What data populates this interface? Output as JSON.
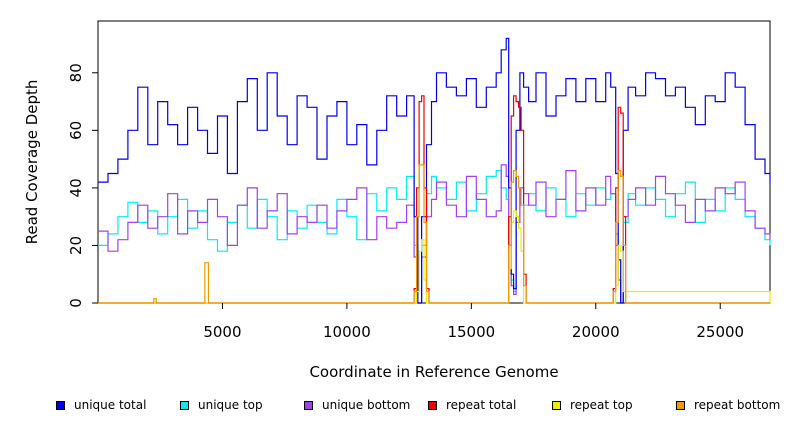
{
  "chart_data": {
    "type": "line",
    "title": "",
    "xlabel": "Coordinate in Reference Genome",
    "ylabel": "Read Coverage Depth",
    "xlim": [
      0,
      27000
    ],
    "ylim": [
      0,
      98
    ],
    "xticks": [
      5000,
      10000,
      15000,
      20000,
      25000
    ],
    "yticks": [
      0,
      20,
      40,
      60,
      80
    ],
    "grid": false,
    "legend_position": "bottom",
    "legend": [
      {
        "name": "unique total",
        "color": "#0000ee"
      },
      {
        "name": "unique top",
        "color": "#00eeee"
      },
      {
        "name": "unique bottom",
        "color": "#a040ee"
      },
      {
        "name": "repeat total",
        "color": "#ee0000"
      },
      {
        "name": "repeat top",
        "color": "#eeee00"
      },
      {
        "name": "repeat bottom",
        "color": "#ee9a00"
      }
    ],
    "series": [
      {
        "name": "unique total",
        "color": "#0000ee",
        "x": [
          0,
          400,
          800,
          1200,
          1600,
          2000,
          2400,
          2800,
          3200,
          3600,
          4000,
          4400,
          4800,
          5200,
          5600,
          6000,
          6400,
          6800,
          7200,
          7600,
          8000,
          8400,
          8800,
          9200,
          9600,
          10000,
          10400,
          10800,
          11200,
          11600,
          12000,
          12400,
          12700,
          12850,
          13000,
          13200,
          13400,
          13600,
          14000,
          14400,
          14800,
          15200,
          15600,
          16000,
          16200,
          16400,
          16500,
          16600,
          16700,
          16800,
          16950,
          17100,
          17300,
          17600,
          18000,
          18400,
          18800,
          19200,
          19600,
          20000,
          20400,
          20600,
          20800,
          20900,
          21000,
          21100,
          21300,
          21600,
          22000,
          22400,
          22800,
          23200,
          23600,
          24000,
          24400,
          24800,
          25200,
          25600,
          26000,
          26400,
          26800,
          27000
        ],
        "values": [
          42,
          45,
          50,
          60,
          75,
          55,
          70,
          62,
          55,
          68,
          60,
          52,
          65,
          45,
          70,
          78,
          60,
          80,
          65,
          55,
          72,
          68,
          50,
          65,
          70,
          55,
          62,
          48,
          60,
          72,
          65,
          72,
          30,
          0,
          30,
          55,
          70,
          80,
          75,
          72,
          78,
          68,
          75,
          80,
          88,
          92,
          40,
          10,
          5,
          60,
          80,
          75,
          70,
          80,
          65,
          72,
          78,
          70,
          78,
          70,
          80,
          75,
          45,
          15,
          0,
          60,
          75,
          72,
          80,
          78,
          72,
          75,
          68,
          62,
          72,
          70,
          80,
          75,
          62,
          50,
          45,
          42
        ]
      },
      {
        "name": "unique top",
        "color": "#00eeee",
        "x": [
          0,
          400,
          800,
          1200,
          1600,
          2000,
          2400,
          2800,
          3200,
          3600,
          4000,
          4400,
          4800,
          5200,
          5600,
          6000,
          6400,
          6800,
          7200,
          7600,
          8000,
          8400,
          8800,
          9200,
          9600,
          10000,
          10400,
          10800,
          11200,
          11600,
          12000,
          12400,
          12700,
          12850,
          13000,
          13200,
          13400,
          13600,
          14000,
          14400,
          14800,
          15200,
          15600,
          16000,
          16200,
          16400,
          16500,
          16600,
          16700,
          16800,
          16950,
          17100,
          17300,
          17600,
          18000,
          18400,
          18800,
          19200,
          19600,
          20000,
          20400,
          20600,
          20800,
          20900,
          21000,
          21100,
          21300,
          21600,
          22000,
          22400,
          22800,
          23200,
          23600,
          24000,
          24400,
          24800,
          25200,
          25600,
          26000,
          26400,
          26800,
          27000
        ],
        "values": [
          20,
          24,
          30,
          35,
          28,
          32,
          24,
          30,
          36,
          26,
          32,
          22,
          18,
          28,
          34,
          26,
          36,
          30,
          22,
          32,
          26,
          34,
          28,
          24,
          36,
          30,
          22,
          38,
          32,
          40,
          36,
          44,
          20,
          0,
          20,
          38,
          44,
          40,
          36,
          42,
          32,
          38,
          44,
          46,
          40,
          36,
          20,
          8,
          4,
          30,
          40,
          34,
          38,
          32,
          40,
          36,
          30,
          38,
          34,
          40,
          36,
          38,
          24,
          8,
          0,
          28,
          38,
          34,
          40,
          36,
          30,
          38,
          42,
          28,
          36,
          32,
          40,
          36,
          30,
          26,
          22,
          20
        ]
      },
      {
        "name": "unique bottom",
        "color": "#a040ee",
        "x": [
          0,
          400,
          800,
          1200,
          1600,
          2000,
          2400,
          2800,
          3200,
          3600,
          4000,
          4400,
          4800,
          5200,
          5600,
          6000,
          6400,
          6800,
          7200,
          7600,
          8000,
          8400,
          8800,
          9200,
          9600,
          10000,
          10400,
          10800,
          11200,
          11600,
          12000,
          12400,
          12700,
          12850,
          13000,
          13200,
          13400,
          13600,
          14000,
          14400,
          14800,
          15200,
          15600,
          16000,
          16200,
          16400,
          16500,
          16600,
          16700,
          16800,
          16950,
          17100,
          17300,
          17600,
          18000,
          18400,
          18800,
          19200,
          19600,
          20000,
          20400,
          20600,
          20800,
          20900,
          21000,
          21100,
          21300,
          21600,
          22000,
          22400,
          22800,
          23200,
          23600,
          24000,
          24400,
          24800,
          25200,
          25600,
          26000,
          26400,
          26800,
          27000
        ],
        "values": [
          25,
          18,
          22,
          28,
          34,
          26,
          30,
          38,
          24,
          32,
          28,
          36,
          30,
          20,
          34,
          40,
          26,
          32,
          38,
          24,
          30,
          28,
          34,
          26,
          32,
          36,
          40,
          22,
          30,
          26,
          28,
          34,
          16,
          0,
          16,
          30,
          36,
          42,
          34,
          30,
          44,
          36,
          30,
          32,
          48,
          44,
          20,
          6,
          3,
          28,
          40,
          38,
          34,
          42,
          30,
          36,
          46,
          32,
          40,
          34,
          44,
          38,
          20,
          8,
          0,
          30,
          36,
          40,
          34,
          44,
          38,
          34,
          28,
          36,
          32,
          40,
          38,
          42,
          32,
          26,
          24,
          22
        ]
      },
      {
        "name": "repeat total",
        "color": "#ee0000",
        "x": [
          0,
          12600,
          12700,
          12800,
          12900,
          13000,
          13100,
          13200,
          13300,
          16300,
          16400,
          16500,
          16600,
          16700,
          16800,
          16900,
          17000,
          17100,
          17200,
          20600,
          20700,
          20800,
          20900,
          21000,
          21100,
          21200,
          27000
        ],
        "values": [
          0,
          0,
          5,
          40,
          70,
          72,
          40,
          5,
          0,
          0,
          0,
          30,
          65,
          72,
          70,
          68,
          60,
          10,
          0,
          0,
          5,
          40,
          68,
          66,
          30,
          0,
          0
        ]
      },
      {
        "name": "repeat top",
        "color": "#eeee00",
        "x": [
          0,
          12700,
          12800,
          12900,
          13000,
          13100,
          13200,
          16400,
          16500,
          16600,
          16700,
          16800,
          16900,
          17000,
          17100,
          20700,
          20800,
          20900,
          21000,
          21100,
          27000
        ],
        "values": [
          0,
          0,
          4,
          18,
          22,
          8,
          0,
          0,
          12,
          28,
          32,
          30,
          26,
          18,
          0,
          0,
          6,
          20,
          18,
          4,
          0
        ]
      },
      {
        "name": "repeat bottom",
        "color": "#ee9a00",
        "x": [
          0,
          2200,
          2240,
          2300,
          2340,
          4250,
          4290,
          4400,
          4440,
          12600,
          12700,
          12800,
          12900,
          13000,
          13100,
          13200,
          13300,
          16300,
          16400,
          16500,
          16600,
          16700,
          16800,
          16900,
          17000,
          17100,
          17200,
          20600,
          20700,
          20800,
          20900,
          21000,
          21100,
          21200,
          27000
        ],
        "values": [
          0,
          0,
          1.5,
          1.5,
          0,
          0,
          14,
          14,
          0,
          0,
          4,
          30,
          48,
          48,
          28,
          4,
          0,
          0,
          0,
          20,
          42,
          46,
          44,
          40,
          34,
          6,
          0,
          0,
          4,
          28,
          46,
          44,
          20,
          0,
          0
        ]
      }
    ]
  }
}
